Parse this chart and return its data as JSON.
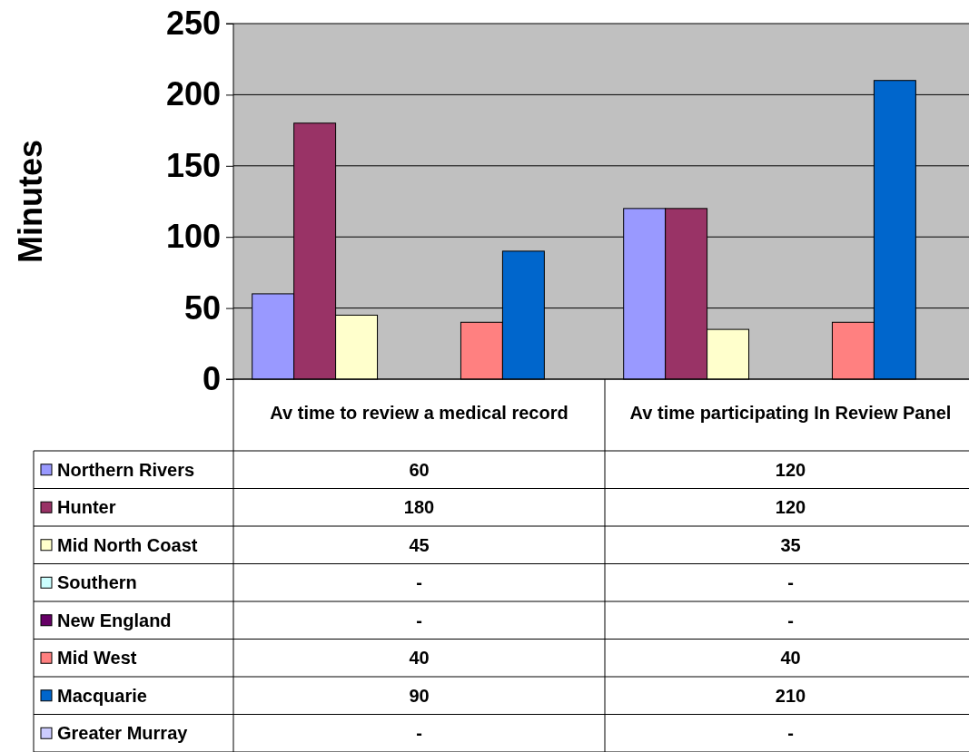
{
  "chart_data": {
    "type": "bar",
    "ylabel": "Minutes",
    "categories": [
      "Av time to review a medical record",
      "Av time participating In Review Panel"
    ],
    "series": [
      {
        "name": "Northern Rivers",
        "color": "#9999ff",
        "values": [
          60,
          120
        ],
        "value_labels": [
          "60",
          "120"
        ]
      },
      {
        "name": "Hunter",
        "color": "#993366",
        "values": [
          180,
          120
        ],
        "value_labels": [
          "180",
          "120"
        ]
      },
      {
        "name": "Mid North Coast",
        "color": "#ffffcc",
        "values": [
          45,
          35
        ],
        "value_labels": [
          "45",
          "35"
        ]
      },
      {
        "name": "Southern",
        "color": "#ccffff",
        "values": [
          null,
          null
        ],
        "value_labels": [
          "-",
          "-"
        ]
      },
      {
        "name": "New England",
        "color": "#660066",
        "values": [
          null,
          null
        ],
        "value_labels": [
          "-",
          "-"
        ]
      },
      {
        "name": "Mid West",
        "color": "#ff8080",
        "values": [
          40,
          40
        ],
        "value_labels": [
          "40",
          "40"
        ]
      },
      {
        "name": "Macquarie",
        "color": "#0066cc",
        "values": [
          90,
          210
        ],
        "value_labels": [
          "90",
          "210"
        ]
      },
      {
        "name": "Greater Murray",
        "color": "#ccccff",
        "values": [
          null,
          null
        ],
        "value_labels": [
          "-",
          "-"
        ]
      }
    ],
    "ylim": [
      0,
      250
    ],
    "yticks": [
      0,
      50,
      100,
      150,
      200,
      250
    ],
    "grid": "y",
    "legend": "bottom"
  }
}
